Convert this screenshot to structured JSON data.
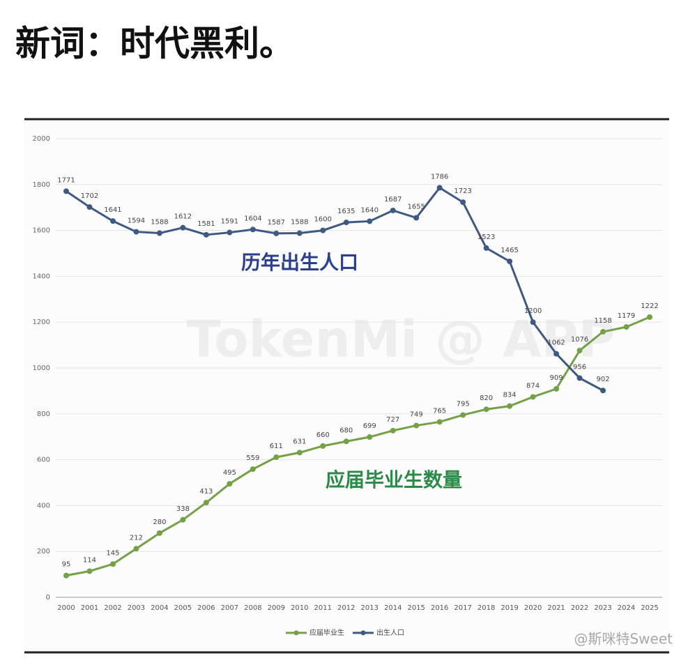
{
  "post_title": "新词：时代黑利。",
  "chart_data": {
    "type": "line",
    "annotations": [
      "历年出生人口",
      "应届毕业生数量"
    ],
    "watermarks": [
      "TokenMi @ APP",
      "@斯咪特Sweet"
    ],
    "categories": [
      "2000",
      "2001",
      "2002",
      "2003",
      "2004",
      "2005",
      "2006",
      "2007",
      "2008",
      "2009",
      "2010",
      "2011",
      "2012",
      "2013",
      "2014",
      "2015",
      "2016",
      "2017",
      "2018",
      "2019",
      "2020",
      "2021",
      "2022",
      "2023",
      "2024",
      "2025"
    ],
    "series": [
      {
        "name": "应届毕业生",
        "color": "#74a046",
        "values": [
          95,
          114,
          145,
          212,
          280,
          338,
          413,
          495,
          559,
          611,
          631,
          660,
          680,
          699,
          727,
          749,
          765,
          795,
          820,
          834,
          874,
          909,
          1076,
          1158,
          1179,
          1222
        ]
      },
      {
        "name": "出生人口",
        "color": "#3e5a82",
        "values": [
          1771,
          1702,
          1641,
          1594,
          1588,
          1612,
          1581,
          1591,
          1604,
          1587,
          1588,
          1600,
          1635,
          1640,
          1687,
          1655,
          1786,
          1723,
          1523,
          1465,
          1200,
          1062,
          956,
          902,
          null,
          null
        ]
      }
    ],
    "ylim": [
      0,
      2000
    ],
    "yticks": [
      0,
      200,
      400,
      600,
      800,
      1000,
      1200,
      1400,
      1600,
      1800,
      2000
    ],
    "grid": true,
    "legend": "bottom"
  }
}
